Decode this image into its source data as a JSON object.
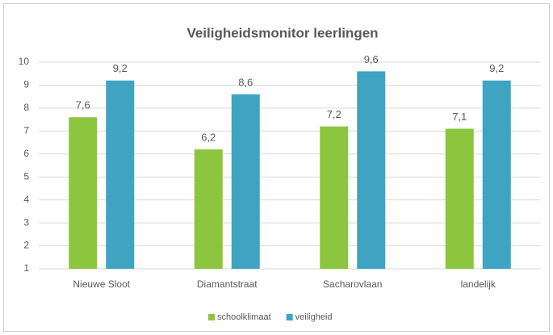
{
  "chart_data": {
    "type": "bar",
    "title": "Veiligheidsmonitor leerlingen",
    "categories": [
      "Nieuwe Sloot",
      "Diamantstraat",
      "Sacharovlaan",
      "landelijk"
    ],
    "series": [
      {
        "name": "schoolklimaat",
        "color": "#8cc63e",
        "values": [
          7.6,
          6.2,
          7.2,
          7.1
        ],
        "value_labels": [
          "7,6",
          "6,2",
          "7,2",
          "7,1"
        ]
      },
      {
        "name": "veiligheid",
        "color": "#3ea4c2",
        "values": [
          9.2,
          8.6,
          9.6,
          9.2
        ],
        "value_labels": [
          "9,2",
          "8,6",
          "9,6",
          "9,2"
        ]
      }
    ],
    "ylim": [
      1,
      10
    ],
    "yticks": [
      1,
      2,
      3,
      4,
      5,
      6,
      7,
      8,
      9,
      10
    ],
    "grid": true,
    "legend": "bottom"
  }
}
